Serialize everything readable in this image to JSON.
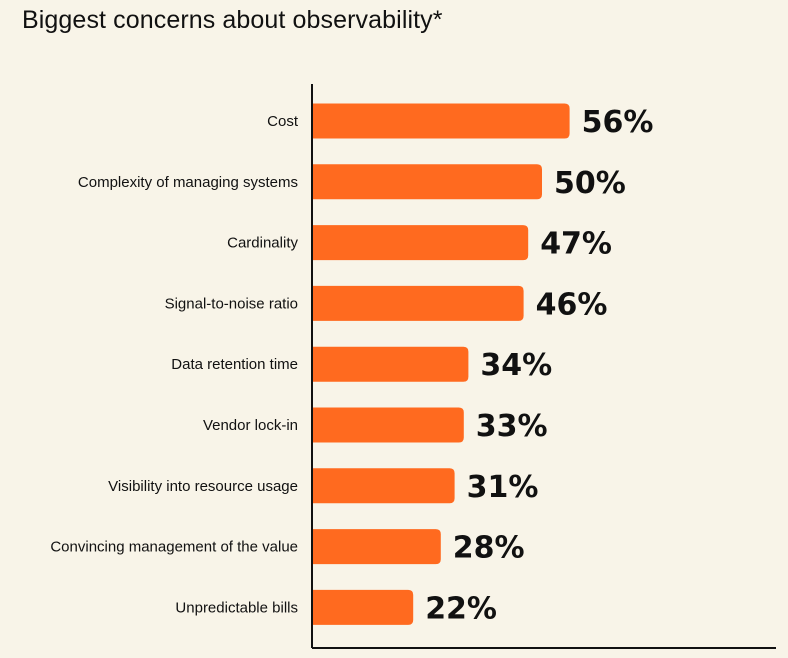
{
  "title": "Biggest concerns about observability*",
  "colors": {
    "bar": "#ff6a1f",
    "axis": "#111111",
    "background": "#f8f4e8"
  },
  "chart_data": {
    "type": "bar",
    "orientation": "horizontal",
    "title": "Biggest concerns about observability*",
    "categories": [
      "Cost",
      "Complexity of managing systems",
      "Cardinality",
      "Signal-to-noise ratio",
      "Data retention time",
      "Vendor lock-in",
      "Visibility into resource usage",
      "Convincing management of the value",
      "Unpredictable bills"
    ],
    "values": [
      56,
      50,
      47,
      46,
      34,
      33,
      31,
      28,
      22
    ],
    "value_labels": [
      "56%",
      "50%",
      "47%",
      "46%",
      "34%",
      "33%",
      "31%",
      "28%",
      "22%"
    ],
    "unit": "%",
    "xlim": [
      0,
      100
    ],
    "grid": false,
    "legend": "none"
  }
}
